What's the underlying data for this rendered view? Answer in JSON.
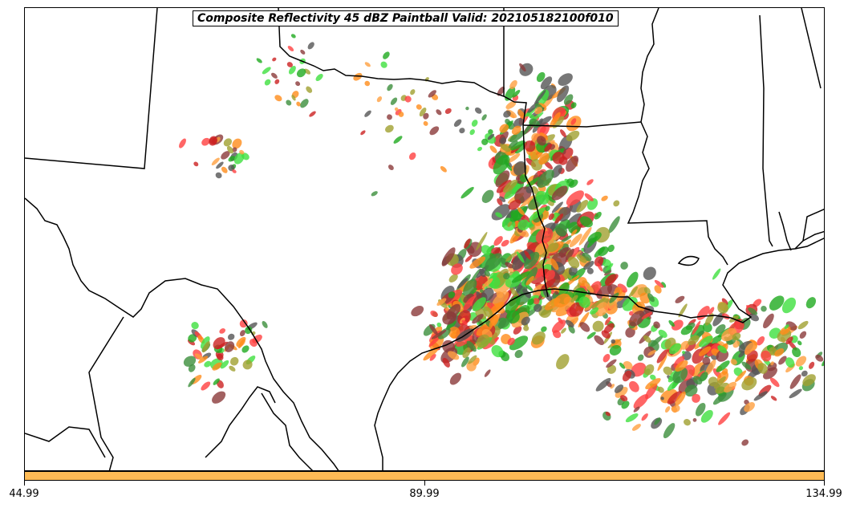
{
  "map": {
    "title": "Composite Reflectivity 45 dBZ Paintball Valid: 202105182100f010",
    "background_color": "#ffffff",
    "boundary_color": "#000000",
    "basemap_layers": [
      "state-boundaries",
      "coastline",
      "lakes"
    ],
    "paintball_colors": [
      "#ff4040",
      "#ff8c1a",
      "#ffa040",
      "#1faa1f",
      "#3c8f3c",
      "#3ee03e",
      "#8b3a3a",
      "#555555",
      "#a0a030",
      "#cc2222"
    ]
  },
  "colorbar": {
    "color": "#ffbb55",
    "tick_labels": [
      "44.99",
      "89.99",
      "134.99"
    ]
  }
}
